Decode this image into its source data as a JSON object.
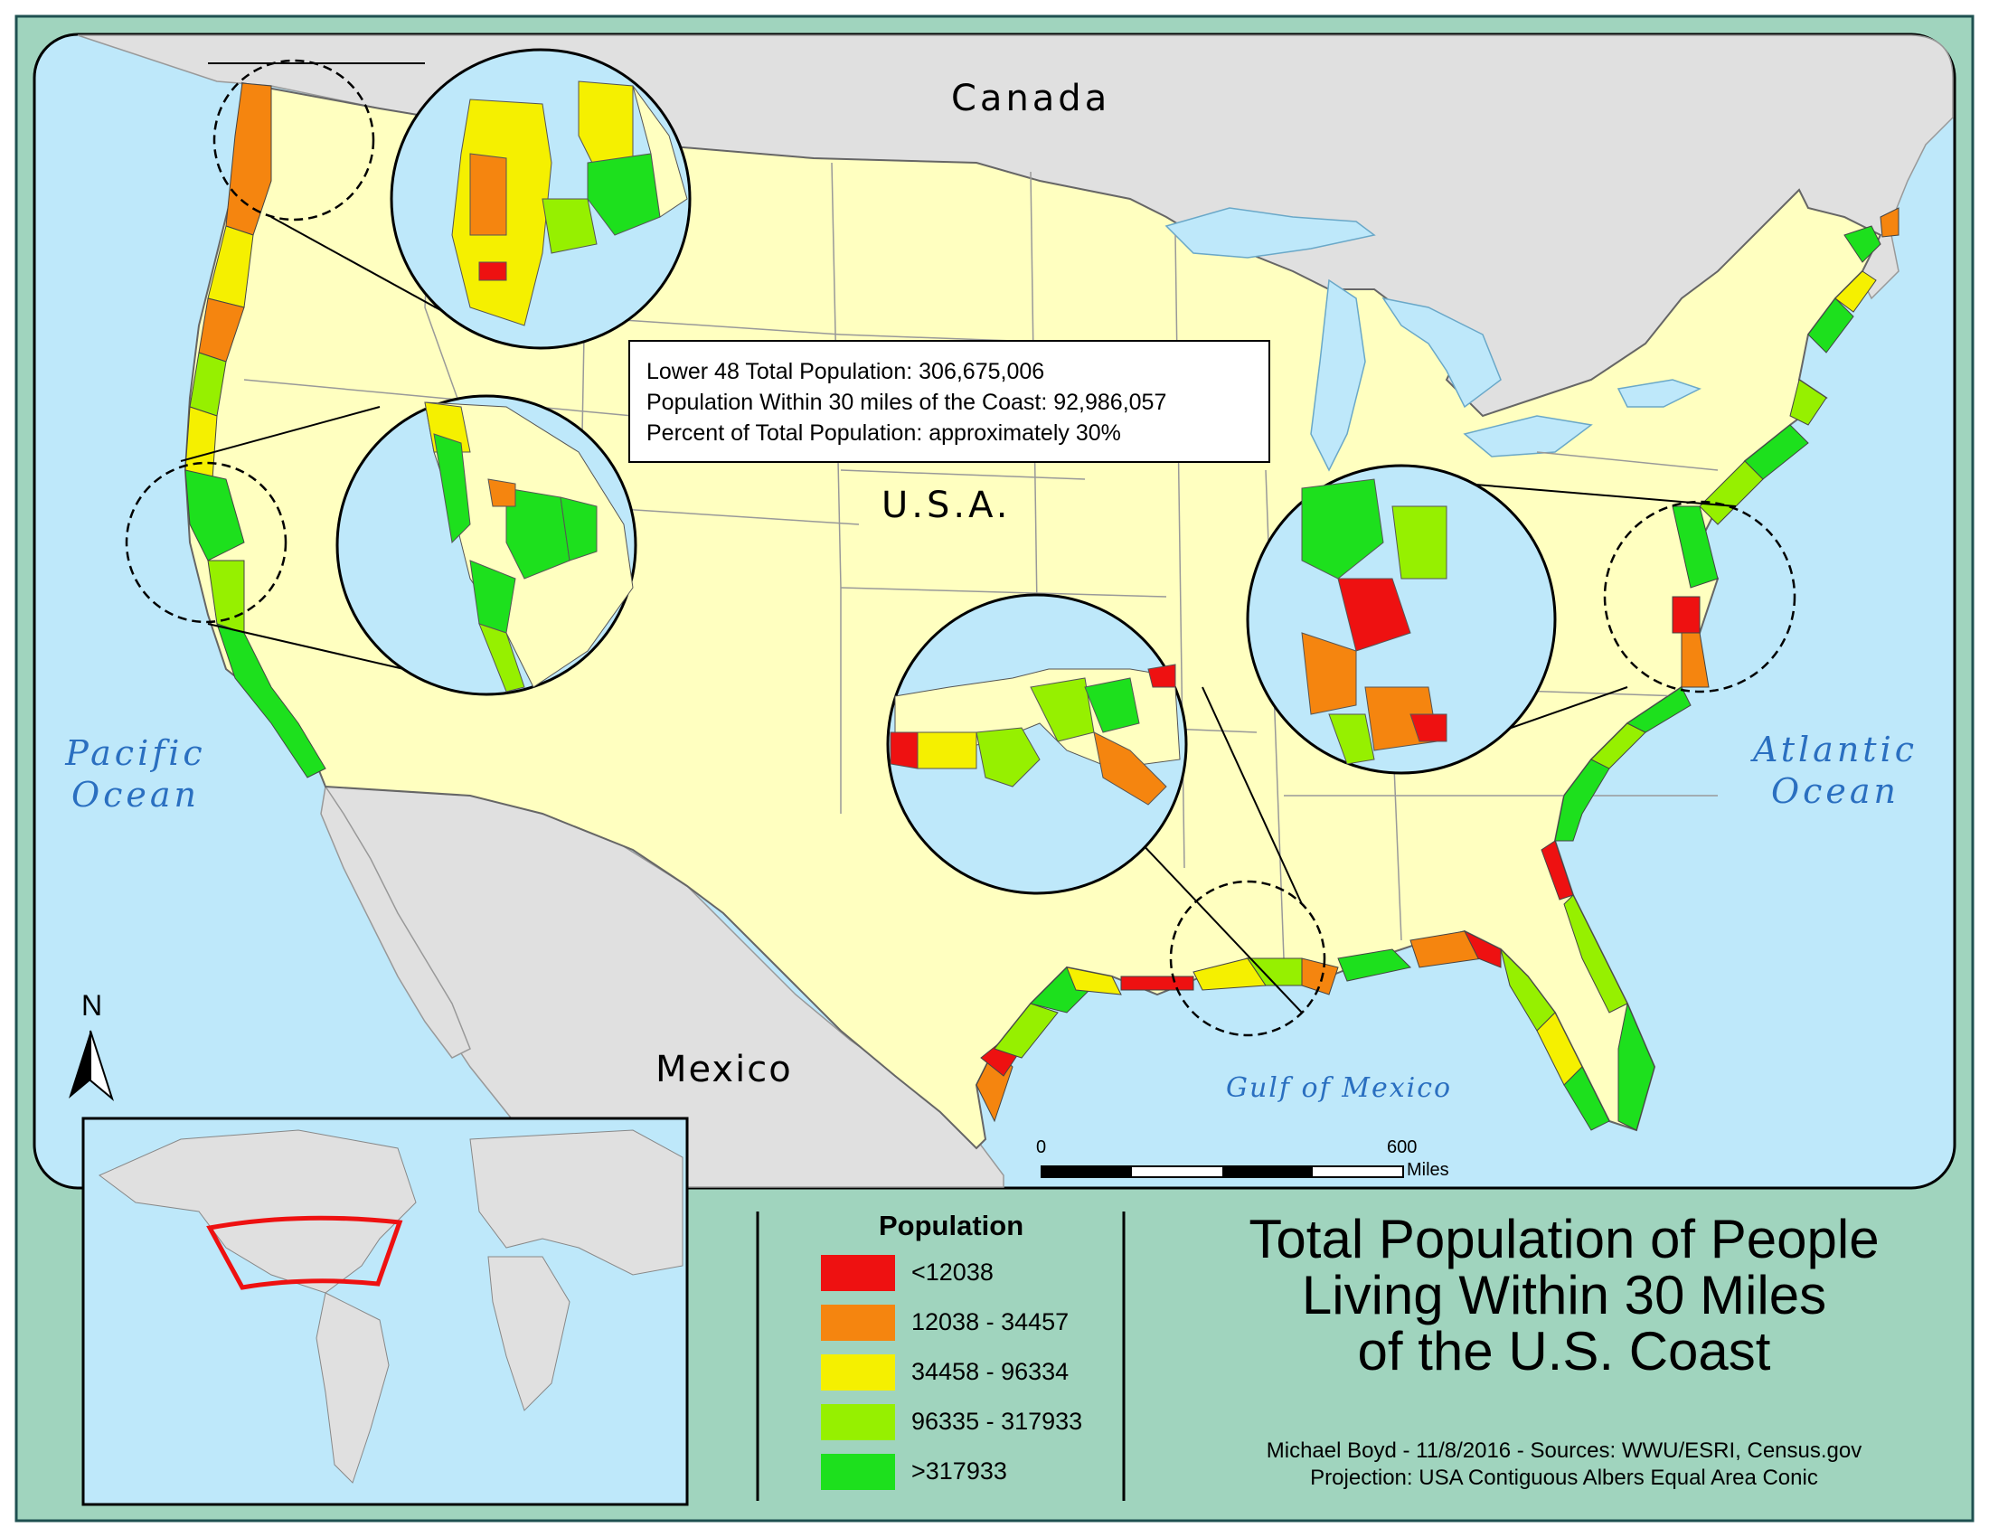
{
  "labels": {
    "canada": "Canada",
    "usa": "U.S.A.",
    "mexico": "Mexico",
    "pacific_line1": "Pacific",
    "pacific_line2": "Ocean",
    "atlantic_line1": "Atlantic",
    "atlantic_line2": "Ocean",
    "gulf": "Gulf of Mexico"
  },
  "stats_box": {
    "line1": "Lower 48 Total Population: 306,675,006",
    "line2": "Population Within 30 miles of the Coast: 92,986,057",
    "line3": "Percent of Total Population: approximately 30%"
  },
  "legend": {
    "title": "Population",
    "items": [
      {
        "label": "<12038",
        "color": "#ee1111"
      },
      {
        "label": "12038 - 34457",
        "color": "#f5850f"
      },
      {
        "label": "34458 - 96334",
        "color": "#f5f000"
      },
      {
        "label": "96335 - 317933",
        "color": "#96f000"
      },
      {
        "label": ">317933",
        "color": "#1de01d"
      }
    ]
  },
  "title": {
    "line1": "Total Population of People",
    "line2": "Living Within 30 Miles",
    "line3": "of the U.S. Coast"
  },
  "credits": {
    "line1": "Michael Boyd - 11/8/2016 - Sources: WWU/ESRI, Census.gov",
    "line2": "Projection: USA Contiguous Albers Equal Area Conic"
  },
  "scale_bar": {
    "start": "0",
    "end": "600",
    "unit": "Miles"
  },
  "north_arrow": {
    "label": "N"
  },
  "colors": {
    "frame": "#a0d4be",
    "ocean": "#bee8fa",
    "land_us": "#ffffc0",
    "land_other": "#e0e0e0"
  }
}
